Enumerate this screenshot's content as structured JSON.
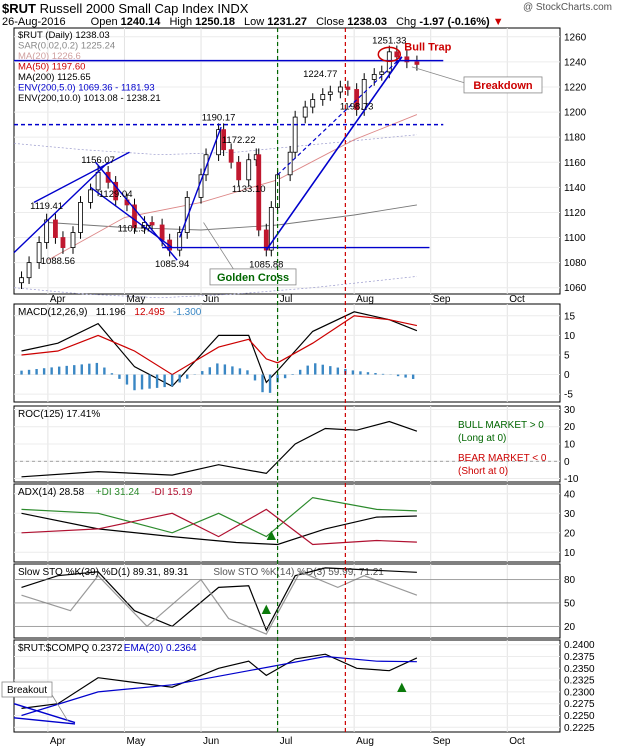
{
  "header": {
    "symbol": "$RUT",
    "name": "Russell 2000 Small Cap Index",
    "exchange": "INDX",
    "credit": "@ StockCharts.com",
    "date": "26-Aug-2016",
    "ohlc": {
      "open_label": "Open",
      "open": "1240.14",
      "high_label": "High",
      "high": "1250.18",
      "low_label": "Low",
      "low": "1231.27",
      "close_label": "Close",
      "close": "1238.03",
      "chg_label": "Chg",
      "chg": "-1.97 (-0.16%)"
    }
  },
  "colors": {
    "frame": "#000000",
    "price_line": "#0000cc",
    "ma50": "#cc0000",
    "ma200": "#000000",
    "env": "#0000cc",
    "green_line": "#006600",
    "red_line": "#cc0000",
    "hist": "#3a87c4",
    "arrow_green": "#0b7a0b",
    "arrow_red": "#cc0000",
    "adx_plus": "#2c8a2c",
    "adx_minus": "#b01030"
  },
  "annotations": {
    "bull_trap": "Bull Trap",
    "breakdown": "Breakdown",
    "golden_cross": "Golden Cross",
    "breakout": "Breakout",
    "bull_market": "BULL MARKET > 0",
    "long_at": "(Long at 0)",
    "bear_market": "BEAR MARKET < 0",
    "short_at": "(Short at 0)"
  },
  "chart_data": [
    {
      "type": "candlestick",
      "title": "$RUT (Daily) 1238.03",
      "legend": [
        {
          "text": "$RUT (Daily) 1238.03",
          "color": "#000000"
        },
        {
          "text": "SAR(0.02,0.2) 1225.24",
          "color": "#888888"
        },
        {
          "text": "MA(20) 1226.6",
          "color": "#d0a0a0"
        },
        {
          "text": "MA(50) 1197.60",
          "color": "#cc0000"
        },
        {
          "text": "MA(200) 1125.65",
          "color": "#000000"
        },
        {
          "text": "ENV(200,5.0) 1069.36 - 1181.93",
          "color": "#0000cc"
        },
        {
          "text": "ENV(200,10.0) 1013.08 - 1238.21",
          "color": "#000000"
        }
      ],
      "x_labels": [
        "Apr",
        "May",
        "Jun",
        "Jul",
        "Aug",
        "Sep",
        "Oct"
      ],
      "y_ticks": [
        1060,
        1080,
        1100,
        1120,
        1140,
        1160,
        1180,
        1200,
        1220,
        1240,
        1260
      ],
      "ylim": [
        1055,
        1267
      ],
      "price_labels": [
        {
          "text": "1119.41",
          "value": 1119.41,
          "at": "Mar-31"
        },
        {
          "text": "1088.56",
          "value": 1088.56,
          "at": "Apr-05"
        },
        {
          "text": "1156.07",
          "value": 1156.07,
          "at": "Apr-21"
        },
        {
          "text": "1129.04",
          "value": 1129.04,
          "at": "Apr-28"
        },
        {
          "text": "1101.57",
          "value": 1101.57,
          "at": "May-05"
        },
        {
          "text": "1085.94",
          "value": 1085.94,
          "at": "May-20"
        },
        {
          "text": "1190.17",
          "value": 1190.17,
          "at": "Jun-08"
        },
        {
          "text": "1172.22",
          "value": 1172.22,
          "at": "Jun-16"
        },
        {
          "text": "1133.10",
          "value": 1133.1,
          "at": "Jun-20"
        },
        {
          "text": "1085.88",
          "value": 1085.88,
          "at": "Jun-27"
        },
        {
          "text": "1224.77",
          "value": 1224.77,
          "at": "Jul-18"
        },
        {
          "text": "1198.73",
          "value": 1198.73,
          "at": "Aug-02"
        },
        {
          "text": "1251.33",
          "value": 1251.33,
          "at": "Aug-15"
        }
      ],
      "horizontal_lines": [
        {
          "value": 1241,
          "style": "solid",
          "color": "#0000cc"
        },
        {
          "value": 1190,
          "style": "dashed",
          "color": "#0000cc"
        },
        {
          "value": 1092,
          "style": "solid",
          "color": "#0000cc"
        }
      ],
      "close_series": [
        {
          "date": "Mar-21",
          "close": 1068
        },
        {
          "date": "Mar-24",
          "close": 1080
        },
        {
          "date": "Mar-28",
          "close": 1096
        },
        {
          "date": "Mar-31",
          "close": 1114
        },
        {
          "date": "Apr-04",
          "close": 1100
        },
        {
          "date": "Apr-07",
          "close": 1092
        },
        {
          "date": "Apr-11",
          "close": 1104
        },
        {
          "date": "Apr-14",
          "close": 1128
        },
        {
          "date": "Apr-18",
          "close": 1138
        },
        {
          "date": "Apr-21",
          "close": 1152
        },
        {
          "date": "Apr-25",
          "close": 1144
        },
        {
          "date": "Apr-28",
          "close": 1130
        },
        {
          "date": "May-02",
          "close": 1126
        },
        {
          "date": "May-05",
          "close": 1108
        },
        {
          "date": "May-09",
          "close": 1112
        },
        {
          "date": "May-12",
          "close": 1110
        },
        {
          "date": "May-16",
          "close": 1098
        },
        {
          "date": "May-19",
          "close": 1090
        },
        {
          "date": "May-23",
          "close": 1104
        },
        {
          "date": "May-26",
          "close": 1132
        },
        {
          "date": "Jun-01",
          "close": 1150
        },
        {
          "date": "Jun-03",
          "close": 1166
        },
        {
          "date": "Jun-08",
          "close": 1186
        },
        {
          "date": "Jun-10",
          "close": 1170
        },
        {
          "date": "Jun-13",
          "close": 1160
        },
        {
          "date": "Jun-16",
          "close": 1146
        },
        {
          "date": "Jun-20",
          "close": 1162
        },
        {
          "date": "Jun-23",
          "close": 1166
        },
        {
          "date": "Jun-24",
          "close": 1106
        },
        {
          "date": "Jun-27",
          "close": 1090
        },
        {
          "date": "Jun-29",
          "close": 1124
        },
        {
          "date": "Jul-01",
          "close": 1150
        },
        {
          "date": "Jul-06",
          "close": 1168
        },
        {
          "date": "Jul-08",
          "close": 1196
        },
        {
          "date": "Jul-12",
          "close": 1204
        },
        {
          "date": "Jul-15",
          "close": 1210
        },
        {
          "date": "Jul-19",
          "close": 1214
        },
        {
          "date": "Jul-22",
          "close": 1216
        },
        {
          "date": "Jul-26",
          "close": 1220
        },
        {
          "date": "Jul-29",
          "close": 1218
        },
        {
          "date": "Aug-02",
          "close": 1202
        },
        {
          "date": "Aug-05",
          "close": 1226
        },
        {
          "date": "Aug-09",
          "close": 1230
        },
        {
          "date": "Aug-12",
          "close": 1232
        },
        {
          "date": "Aug-15",
          "close": 1248
        },
        {
          "date": "Aug-18",
          "close": 1244
        },
        {
          "date": "Aug-22",
          "close": 1240
        },
        {
          "date": "Aug-26",
          "close": 1238
        }
      ],
      "ma50": [
        {
          "date": "Apr-01",
          "v": 1082
        },
        {
          "date": "May-01",
          "v": 1116
        },
        {
          "date": "Jun-01",
          "v": 1128
        },
        {
          "date": "Jul-01",
          "v": 1146
        },
        {
          "date": "Aug-01",
          "v": 1178
        },
        {
          "date": "Aug-26",
          "v": 1198
        }
      ],
      "ma200": [
        {
          "date": "Apr-01",
          "v": 1112
        },
        {
          "date": "May-01",
          "v": 1108
        },
        {
          "date": "Jun-01",
          "v": 1106
        },
        {
          "date": "Jul-01",
          "v": 1110
        },
        {
          "date": "Aug-01",
          "v": 1118
        },
        {
          "date": "Aug-26",
          "v": 1126
        }
      ]
    },
    {
      "type": "line",
      "title": "MACD(12,26,9) 11.196, 12.495, -1.300",
      "legend": [
        {
          "text": "MACD(12,26,9)",
          "color": "#000000"
        },
        {
          "text": "11.196",
          "color": "#000000"
        },
        {
          "text": "12.495",
          "color": "#cc0000"
        },
        {
          "text": "-1.300",
          "color": "#3a87c4"
        }
      ],
      "y_ticks": [
        -5,
        0,
        5,
        10,
        15
      ],
      "ylim": [
        -7,
        18
      ],
      "series": [
        {
          "name": "MACD",
          "values_by_date": [
            [
              "Mar-21",
              6
            ],
            [
              "Apr-05",
              8
            ],
            [
              "Apr-21",
              13
            ],
            [
              "May-05",
              2
            ],
            [
              "May-20",
              -3
            ],
            [
              "Jun-08",
              10
            ],
            [
              "Jun-20",
              10
            ],
            [
              "Jun-27",
              -2
            ],
            [
              "Jul-01",
              1
            ],
            [
              "Jul-15",
              11
            ],
            [
              "Aug-01",
              16
            ],
            [
              "Aug-15",
              14
            ],
            [
              "Aug-26",
              11.2
            ]
          ]
        },
        {
          "name": "Signal",
          "values_by_date": [
            [
              "Mar-21",
              5
            ],
            [
              "Apr-05",
              6
            ],
            [
              "Apr-21",
              10
            ],
            [
              "May-05",
              6
            ],
            [
              "May-20",
              0
            ],
            [
              "Jun-08",
              7
            ],
            [
              "Jun-20",
              9
            ],
            [
              "Jun-27",
              4
            ],
            [
              "Jul-01",
              3
            ],
            [
              "Jul-15",
              8
            ],
            [
              "Aug-01",
              15
            ],
            [
              "Aug-15",
              14
            ],
            [
              "Aug-26",
              12.5
            ]
          ]
        }
      ]
    },
    {
      "type": "line",
      "title": "ROC(125) 17.41%",
      "y_ticks": [
        -10,
        0,
        10,
        20,
        30
      ],
      "ylim": [
        -12,
        32
      ],
      "series": [
        {
          "name": "ROC",
          "values_by_date": [
            [
              "Mar-21",
              -9
            ],
            [
              "Apr-21",
              -6
            ],
            [
              "May-20",
              -8
            ],
            [
              "Jun-08",
              -2
            ],
            [
              "Jun-27",
              -7
            ],
            [
              "Jul-08",
              10
            ],
            [
              "Jul-20",
              19
            ],
            [
              "Aug-02",
              18
            ],
            [
              "Aug-15",
              23
            ],
            [
              "Aug-26",
              17.4
            ]
          ]
        }
      ]
    },
    {
      "type": "line",
      "title": "ADX(14) 28.58 +DI 31.24 -DI 15.19",
      "legend": [
        {
          "text": "ADX(14) 28.58",
          "color": "#000000"
        },
        {
          "text": "+DI 31.24",
          "color": "#2c8a2c"
        },
        {
          "text": "-DI 15.19",
          "color": "#b01030"
        }
      ],
      "y_ticks": [
        10,
        20,
        30,
        40
      ],
      "ylim": [
        5,
        45
      ],
      "series": [
        {
          "name": "ADX",
          "values_by_date": [
            [
              "Mar-21",
              30
            ],
            [
              "Apr-21",
              22
            ],
            [
              "May-20",
              18
            ],
            [
              "Jun-15",
              15
            ],
            [
              "Jul-01",
              14
            ],
            [
              "Jul-20",
              22
            ],
            [
              "Aug-10",
              28
            ],
            [
              "Aug-26",
              28.6
            ]
          ]
        },
        {
          "name": "+DI",
          "values_by_date": [
            [
              "Mar-21",
              32
            ],
            [
              "Apr-21",
              30
            ],
            [
              "May-20",
              20
            ],
            [
              "Jun-08",
              30
            ],
            [
              "Jun-27",
              18
            ],
            [
              "Jul-15",
              38
            ],
            [
              "Aug-10",
              32
            ],
            [
              "Aug-26",
              31.2
            ]
          ]
        },
        {
          "name": "-DI",
          "values_by_date": [
            [
              "Mar-21",
              20
            ],
            [
              "Apr-21",
              22
            ],
            [
              "May-20",
              30
            ],
            [
              "Jun-08",
              18
            ],
            [
              "Jun-27",
              32
            ],
            [
              "Jul-15",
              14
            ],
            [
              "Aug-10",
              16
            ],
            [
              "Aug-26",
              15.2
            ]
          ]
        }
      ]
    },
    {
      "type": "line",
      "title": "Slow STO %K(39) %D(1) 89.31, 89.31",
      "legend": [
        {
          "text": "Slow STO %K(39) %D(1) 89.31, 89.31",
          "color": "#000000"
        },
        {
          "text": "Slow STO %K(14) %D(3) 59.99, 71.21",
          "color": "#555555"
        }
      ],
      "y_ticks": [
        20,
        50,
        80
      ],
      "ylim": [
        5,
        100
      ],
      "series": [
        {
          "name": "%K(39)",
          "values_by_date": [
            [
              "Mar-21",
              70
            ],
            [
              "Apr-05",
              85
            ],
            [
              "Apr-21",
              90
            ],
            [
              "May-05",
              40
            ],
            [
              "May-20",
              20
            ],
            [
              "Jun-08",
              70
            ],
            [
              "Jun-20",
              72
            ],
            [
              "Jun-27",
              15
            ],
            [
              "Jul-08",
              85
            ],
            [
              "Jul-20",
              95
            ],
            [
              "Aug-26",
              89.3
            ]
          ]
        },
        {
          "name": "%K(14)",
          "values_by_date": [
            [
              "Mar-21",
              60
            ],
            [
              "Apr-10",
              40
            ],
            [
              "Apr-21",
              85
            ],
            [
              "May-10",
              20
            ],
            [
              "Jun-01",
              80
            ],
            [
              "Jun-12",
              30
            ],
            [
              "Jun-27",
              10
            ],
            [
              "Jul-10",
              90
            ],
            [
              "Jul-25",
              70
            ],
            [
              "Aug-05",
              85
            ],
            [
              "Aug-26",
              60
            ]
          ]
        }
      ]
    },
    {
      "type": "line",
      "title": "$RUT:$COMPQ 0.2372",
      "legend": [
        {
          "text": "$RUT:$COMPQ 0.2372",
          "color": "#000000"
        },
        {
          "text": "EMA(20) 0.2364",
          "color": "#0000cc"
        }
      ],
      "y_ticks": [
        0.2225,
        0.225,
        0.2275,
        0.23,
        0.2325,
        0.235,
        0.2375,
        0.24
      ],
      "ylim": [
        0.2215,
        0.241
      ],
      "x_labels": [
        "Apr",
        "May",
        "Jun",
        "Jul",
        "Aug",
        "Sep",
        "Oct"
      ],
      "series": [
        {
          "name": "Ratio",
          "values_by_date": [
            [
              "Mar-21",
              0.2265
            ],
            [
              "Apr-05",
              0.2275
            ],
            [
              "Apr-21",
              0.233
            ],
            [
              "May-05",
              0.232
            ],
            [
              "May-20",
              0.231
            ],
            [
              "Jun-08",
              0.235
            ],
            [
              "Jun-20",
              0.2365
            ],
            [
              "Jun-27",
              0.2335
            ],
            [
              "Jul-08",
              0.237
            ],
            [
              "Jul-20",
              0.238
            ],
            [
              "Aug-02",
              0.235
            ],
            [
              "Aug-15",
              0.2345
            ],
            [
              "Aug-26",
              0.2372
            ]
          ]
        },
        {
          "name": "EMA(20)",
          "values_by_date": [
            [
              "Mar-21",
              0.225
            ],
            [
              "Apr-21",
              0.23
            ],
            [
              "May-20",
              0.2315
            ],
            [
              "Jun-20",
              0.2345
            ],
            [
              "Jul-20",
              0.2375
            ],
            [
              "Aug-10",
              0.2365
            ],
            [
              "Aug-26",
              0.2364
            ]
          ]
        }
      ]
    }
  ]
}
